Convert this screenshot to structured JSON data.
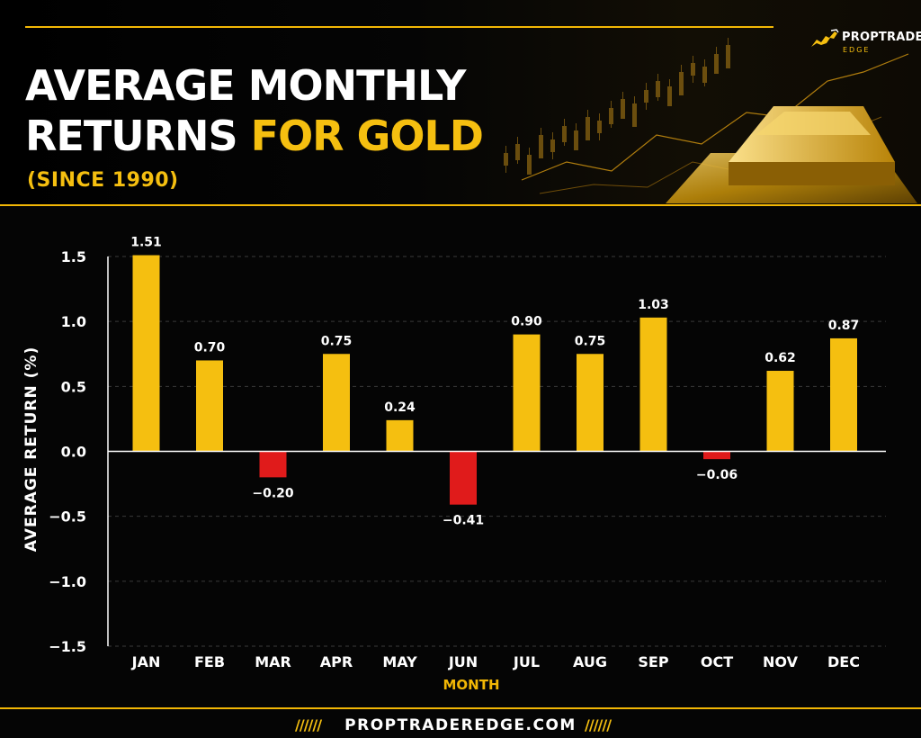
{
  "header": {
    "title_line1": "AVERAGE MONTHLY",
    "title_line2_white": "RETURNS ",
    "title_line2_gold": "FOR GOLD",
    "subtitle": "(SINCE 1990)"
  },
  "logo": {
    "name": "PROPTRADER",
    "sub": "EDGE",
    "icon": "bull-icon"
  },
  "footer": {
    "website": "PROPTRADEREDGE.COM",
    "decoration": "//////"
  },
  "colors": {
    "positive": "#f5bf10",
    "negative": "#e01b1b",
    "accent": "#f2b705",
    "background": "#050505"
  },
  "chart_data": {
    "type": "bar",
    "xlabel": "MONTH",
    "ylabel": "AVERAGE RETURN (%)",
    "ylim": [
      -1.5,
      1.5
    ],
    "yticks": [
      1.5,
      1.0,
      0.5,
      0.0,
      -0.5,
      -1.0,
      -1.5
    ],
    "ytick_labels": [
      "1.5",
      "1.0",
      "0.5",
      "0.0",
      "−0.5",
      "−1.0",
      "−1.5"
    ],
    "grid": "horizontal dashed",
    "categories": [
      "JAN",
      "FEB",
      "MAR",
      "APR",
      "MAY",
      "JUN",
      "JUL",
      "AUG",
      "SEP",
      "OCT",
      "NOV",
      "DEC"
    ],
    "values": [
      1.51,
      0.7,
      -0.2,
      0.75,
      0.24,
      -0.41,
      0.9,
      0.75,
      1.03,
      -0.06,
      0.62,
      0.87
    ],
    "labels": [
      "1.51",
      "0.70",
      "−0.20",
      "0.75",
      "0.24",
      "−0.41",
      "0.90",
      "0.75",
      "1.03",
      "−0.06",
      "0.62",
      "0.87"
    ]
  }
}
